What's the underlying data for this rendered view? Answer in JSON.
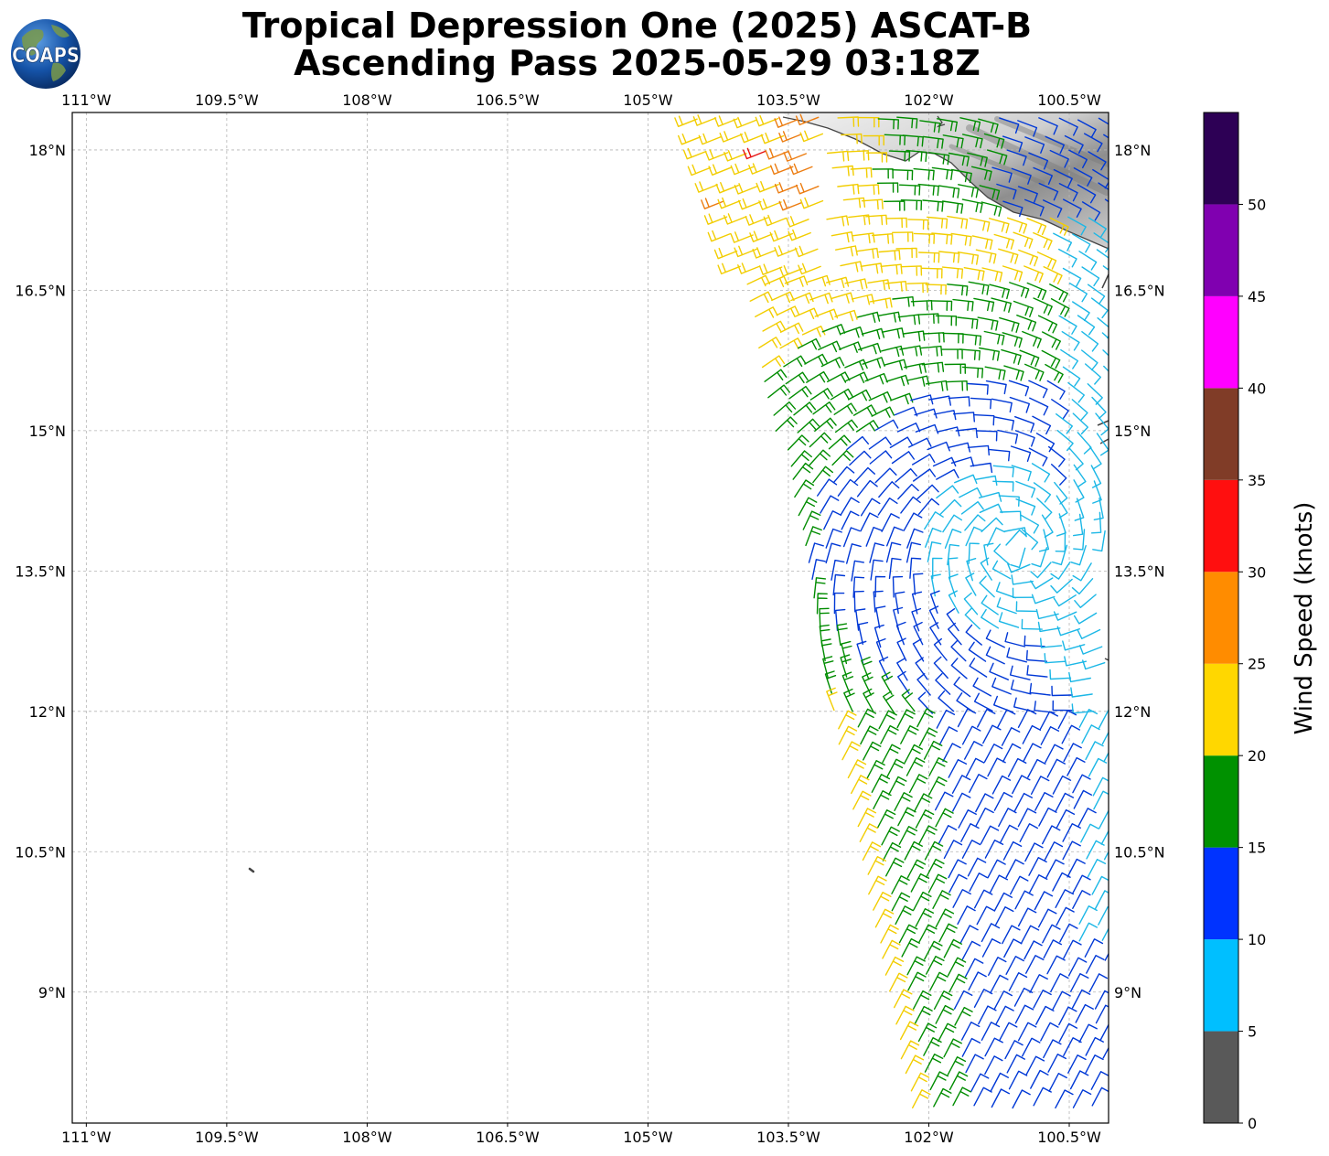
{
  "title": {
    "line1": "Tropical Depression One (2025) ASCAT-B",
    "line2": "Ascending Pass 2025-05-29 03:18Z"
  },
  "logo": {
    "text": "COAPS",
    "icon": "globe-icon"
  },
  "map": {
    "lon_ticks": [
      "111°W",
      "109.5°W",
      "108°W",
      "106.5°W",
      "105°W",
      "103.5°W",
      "102°W",
      "100.5°W"
    ],
    "lat_ticks": [
      "18°N",
      "16.5°N",
      "15°N",
      "13.5°N",
      "12°N",
      "10.5°N",
      "9°N"
    ],
    "lon_values": [
      -111,
      -109.5,
      -108,
      -106.5,
      -105,
      -103.5,
      -102,
      -100.5
    ],
    "lat_values": [
      18,
      16.5,
      15,
      13.5,
      12,
      10.5,
      9
    ],
    "extent": {
      "lon_min": -111.15,
      "lon_max": -100.08,
      "lat_min": 7.6,
      "lat_max": 18.4
    },
    "gridlines": true
  },
  "colorbar": {
    "label": "Wind Speed (knots)",
    "ticks": [
      "0",
      "5",
      "10",
      "15",
      "20",
      "25",
      "30",
      "35",
      "40",
      "45",
      "50"
    ],
    "bins": [
      {
        "min": 0,
        "max": 5,
        "color": "#595959"
      },
      {
        "min": 5,
        "max": 10,
        "color": "#00bfff"
      },
      {
        "min": 10,
        "max": 15,
        "color": "#0033ff"
      },
      {
        "min": 15,
        "max": 20,
        "color": "#009100"
      },
      {
        "min": 20,
        "max": 25,
        "color": "#ffd700"
      },
      {
        "min": 25,
        "max": 30,
        "color": "#ff8c00"
      },
      {
        "min": 30,
        "max": 35,
        "color": "#ff0f0f"
      },
      {
        "min": 35,
        "max": 40,
        "color": "#803c27"
      },
      {
        "min": 40,
        "max": 45,
        "color": "#ff00ff"
      },
      {
        "min": 45,
        "max": 50,
        "color": "#8000b0"
      },
      {
        "min": 50,
        "max": 55,
        "color": "#2d0055"
      }
    ]
  },
  "colors": {
    "wind_lt5": "#595959",
    "wind_5_10": "#1bb7e6",
    "wind_10_15": "#0038d6",
    "wind_15_20": "#008c00",
    "wind_20_25": "#f2cd00",
    "wind_25_30": "#ec7c10",
    "wind_30_35": "#e60f0f",
    "coastline": "#444444",
    "gridline": "#b3b3b3"
  }
}
